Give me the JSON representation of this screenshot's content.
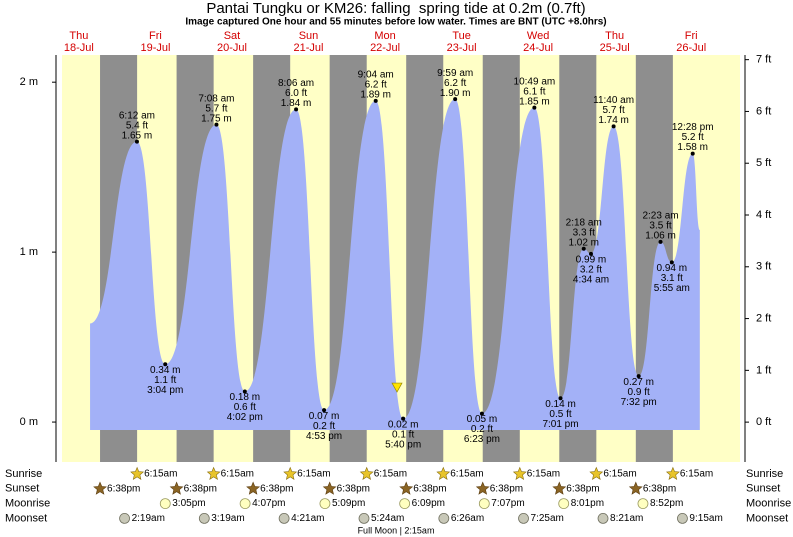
{
  "chart_data": {
    "type": "tide",
    "title": "Pantai Tungku or KM26: falling  spring tide at 0.2m (0.7ft)",
    "subtitle": "Image captured One hour and 55 minutes before low water. Times are BNT (UTC +8.0hrs)",
    "days": {
      "x": [
        12,
        36,
        60,
        84,
        108,
        132,
        156,
        180,
        204
      ],
      "names": [
        "Thu",
        "Fri",
        "Sat",
        "Sun",
        "Mon",
        "Tue",
        "Wed",
        "Thu",
        "Fri"
      ],
      "dates": [
        "18-Jul",
        "19-Jul",
        "20-Jul",
        "21-Jul",
        "22-Jul",
        "23-Jul",
        "24-Jul",
        "25-Jul",
        "26-Jul"
      ]
    },
    "xlim": [
      6.7,
      219.3
    ],
    "ylim": [
      -0.235,
      2.16
    ],
    "yticks": [
      {
        "value": 0,
        "label": "0 m"
      },
      {
        "value": 1,
        "label": "1 m"
      },
      {
        "value": 2,
        "label": "2 m"
      }
    ],
    "y2lim": [
      -0.77,
      7.09
    ],
    "y2ticks": [
      {
        "value": 0,
        "label": "0 ft"
      },
      {
        "value": 1,
        "label": "1 ft"
      },
      {
        "value": 2,
        "label": "2 ft"
      },
      {
        "value": 3,
        "label": "3 ft"
      },
      {
        "value": 4,
        "label": "4 ft"
      },
      {
        "value": 5,
        "label": "5 ft"
      },
      {
        "value": 6,
        "label": "6 ft"
      },
      {
        "value": 7,
        "label": "7 ft"
      }
    ],
    "color": "#a3b1f7",
    "day_color": "#ffffc6",
    "night_color": "#8e8e8e",
    "tide_start": {
      "x": 15.5,
      "value": 0.58
    },
    "tide_end": {
      "x": 206.7,
      "value": 1.13
    },
    "extremes": {
      "x": [
        30.2,
        39.07,
        55.13,
        64.03,
        80.1,
        88.88,
        105.07,
        113.67,
        129.98,
        138.38,
        154.82,
        163.02,
        170.3,
        172.57,
        179.67,
        187.53,
        194.38,
        197.92,
        204.47
      ],
      "values": [
        1.65,
        0.34,
        1.75,
        0.18,
        1.84,
        0.07,
        1.89,
        0.02,
        1.9,
        0.05,
        1.85,
        0.14,
        1.02,
        0.99,
        1.74,
        0.27,
        1.06,
        0.94,
        1.58
      ],
      "value_labels": [
        "1.65 m",
        "0.34 m",
        "1.75 m",
        "0.18 m",
        "1.84 m",
        "0.07 m",
        "1.89 m",
        "0.02 m",
        "1.90 m",
        "0.05 m",
        "1.85 m",
        "0.14 m",
        "1.02 m",
        "0.99 m",
        "1.74 m",
        "0.27 m",
        "1.06 m",
        "0.94 m",
        "1.58 m"
      ],
      "ft_labels": [
        "5.4 ft",
        "1.1 ft",
        "5.7 ft",
        "0.6 ft",
        "6.0 ft",
        "0.2 ft",
        "6.2 ft",
        "0.1 ft",
        "6.2 ft",
        "0.2 ft",
        "6.1 ft",
        "0.5 ft",
        "3.3 ft",
        "3.2 ft",
        "5.7 ft",
        "0.9 ft",
        "3.5 ft",
        "3.1 ft",
        "5.2 ft"
      ],
      "times": [
        "6:12 am",
        "3:04 pm",
        "7:08 am",
        "4:02 pm",
        "8:06 am",
        "4:53 pm",
        "9:04 am",
        "5:40 pm",
        "9:59 am",
        "6:23 pm",
        "10:49 am",
        "7:01 pm",
        "2:18 am",
        "4:34 am",
        "11:40 am",
        "7:32 pm",
        "2:23 am",
        "5:55 am",
        "12:28 pm"
      ]
    },
    "now": {
      "x": 111.75,
      "value": 0.2
    },
    "sun_moon": [
      {
        "label": "Sunrise",
        "x": [
          30.25,
          54.25,
          78.25,
          102.25,
          126.25,
          150.25,
          174.25,
          198.25
        ],
        "times": [
          "6:15am",
          "6:15am",
          "6:15am",
          "6:15am",
          "6:15am",
          "6:15am",
          "6:15am",
          "6:15am"
        ]
      },
      {
        "label": "Sunset",
        "x": [
          18.63,
          42.63,
          66.63,
          90.63,
          114.63,
          138.63,
          162.63,
          186.63
        ],
        "times": [
          "6:38pm",
          "6:38pm",
          "6:38pm",
          "6:38pm",
          "6:38pm",
          "6:38pm",
          "6:38pm",
          "6:38pm"
        ]
      },
      {
        "label": "Moonrise",
        "x": [
          39.08,
          64.12,
          89.15,
          114.15,
          139.12,
          164.02,
          188.87
        ],
        "times": [
          "3:05pm",
          "4:07pm",
          "5:09pm",
          "6:09pm",
          "7:07pm",
          "8:01pm",
          "8:52pm"
        ]
      },
      {
        "label": "Moonset",
        "x": [
          26.32,
          51.32,
          76.35,
          101.4,
          126.43,
          151.42,
          176.35,
          201.25
        ],
        "times": [
          "2:19am",
          "3:19am",
          "4:21am",
          "5:24am",
          "6:26am",
          "7:25am",
          "8:21am",
          "9:15am"
        ]
      }
    ],
    "moon_phase": "Full Moon | 2:15am"
  }
}
